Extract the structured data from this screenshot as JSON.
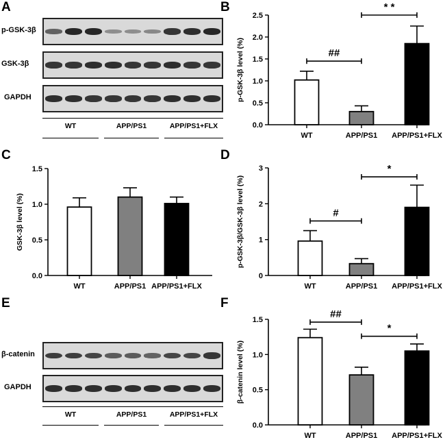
{
  "panels": {
    "A": {
      "letter": "A",
      "rows": [
        {
          "label": "p-GSK-3β",
          "intensities": [
            0.55,
            0.95,
            0.95,
            0.25,
            0.25,
            0.3,
            0.85,
            0.9,
            0.95
          ]
        },
        {
          "label": "GSK-3β",
          "intensities": [
            0.85,
            0.85,
            0.9,
            0.9,
            0.85,
            0.85,
            0.9,
            0.85,
            0.85
          ]
        },
        {
          "label": "GAPDH",
          "intensities": [
            0.9,
            0.9,
            0.85,
            0.85,
            0.85,
            0.85,
            0.9,
            0.9,
            0.9
          ]
        }
      ],
      "groups": [
        "WT",
        "APP/PS1",
        "APP/PS1+FLX"
      ]
    },
    "E": {
      "letter": "E",
      "rows": [
        {
          "label": "β-catenin",
          "intensities": [
            0.8,
            0.8,
            0.75,
            0.6,
            0.6,
            0.55,
            0.75,
            0.75,
            0.85
          ]
        },
        {
          "label": "GAPDH",
          "intensities": [
            0.9,
            0.9,
            0.9,
            0.9,
            0.9,
            0.9,
            0.9,
            0.9,
            0.9
          ]
        }
      ],
      "groups": [
        "WT",
        "APP/PS1",
        "APP/PS1+FLX"
      ]
    },
    "B": {
      "letter": "B"
    },
    "C": {
      "letter": "C"
    },
    "D": {
      "letter": "D"
    },
    "F": {
      "letter": "F"
    }
  },
  "chart_data": [
    {
      "panel": "B",
      "type": "bar",
      "categories": [
        "WT",
        "APP/PS1",
        "APP/PS1+FLX"
      ],
      "values": [
        1.02,
        0.3,
        1.85
      ],
      "errors": [
        0.2,
        0.13,
        0.4
      ],
      "colors": [
        "#ffffff",
        "#808080",
        "#000000"
      ],
      "ylabel": "p-GSK-3β level (%)",
      "ylim": [
        0,
        2.5
      ],
      "yticks": [
        "0.0",
        "0.5",
        "1.0",
        "1.5",
        "2.0",
        "2.5"
      ],
      "annotations": [
        {
          "from": 0,
          "to": 1,
          "label": "##",
          "level": 1.45
        },
        {
          "from": 1,
          "to": 2,
          "label": "* *",
          "level": 2.5
        }
      ]
    },
    {
      "panel": "C",
      "type": "bar",
      "categories": [
        "WT",
        "APP/PS1",
        "APP/PS1+FLX"
      ],
      "values": [
        0.96,
        1.1,
        1.01
      ],
      "errors": [
        0.13,
        0.13,
        0.09
      ],
      "colors": [
        "#ffffff",
        "#808080",
        "#000000"
      ],
      "ylabel": "GSK-3β level (%)",
      "ylim": [
        0,
        1.5
      ],
      "yticks": [
        "0.0",
        "0.5",
        "1.0",
        "1.5"
      ],
      "annotations": []
    },
    {
      "panel": "D",
      "type": "bar",
      "categories": [
        "WT",
        "APP/PS1",
        "APP/PS1+FLX"
      ],
      "values": [
        0.96,
        0.33,
        1.9
      ],
      "errors": [
        0.29,
        0.14,
        0.62
      ],
      "colors": [
        "#ffffff",
        "#808080",
        "#000000"
      ],
      "ylabel": "p-GSK-3β/GSK-3β level (%)",
      "ylim": [
        0,
        3
      ],
      "yticks": [
        "0",
        "1",
        "2",
        "3"
      ],
      "annotations": [
        {
          "from": 0,
          "to": 1,
          "label": "#",
          "level": 1.52
        },
        {
          "from": 1,
          "to": 2,
          "label": "*",
          "level": 2.75
        }
      ]
    },
    {
      "panel": "F",
      "type": "bar",
      "categories": [
        "WT",
        "APP/PS1",
        "APP/PS1+FLX"
      ],
      "values": [
        1.24,
        0.71,
        1.05
      ],
      "errors": [
        0.12,
        0.11,
        0.1
      ],
      "colors": [
        "#ffffff",
        "#808080",
        "#000000"
      ],
      "ylabel": "β-catenin level (%)",
      "ylim": [
        0,
        1.5
      ],
      "yticks": [
        "0.0",
        "0.5",
        "1.0",
        "1.5"
      ],
      "annotations": [
        {
          "from": 0,
          "to": 1,
          "label": "##",
          "level": 1.46
        },
        {
          "from": 1,
          "to": 2,
          "label": "*",
          "level": 1.26
        }
      ]
    }
  ]
}
